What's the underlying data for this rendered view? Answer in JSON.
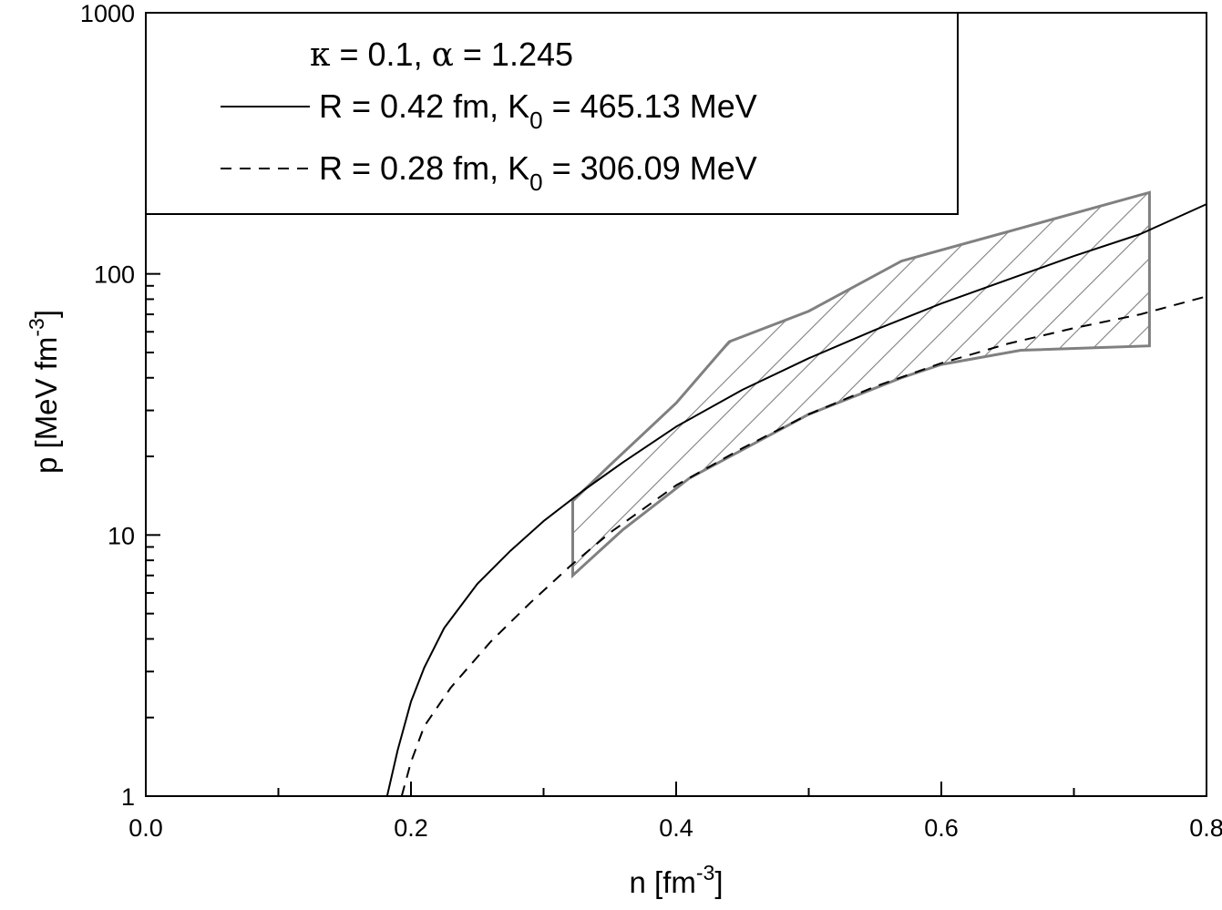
{
  "chart_data": {
    "type": "line",
    "x_axis": {
      "label": "n [fm",
      "label_sup": "-3",
      "label_tail": "]",
      "range": [
        0.0,
        0.8
      ],
      "scale": "linear",
      "major_ticks": [
        0.0,
        0.2,
        0.4,
        0.6,
        0.8
      ],
      "tick_labels": [
        "0.0",
        "0.2",
        "0.4",
        "0.6",
        "0.8"
      ],
      "minor_step": 0.1
    },
    "y_axis": {
      "label": "p [MeV fm",
      "label_sup": "-3",
      "label_tail": "]",
      "range": [
        1,
        1000
      ],
      "scale": "log",
      "major_ticks": [
        1,
        10,
        100,
        1000
      ],
      "tick_labels": [
        "1",
        "10",
        "100",
        "1000"
      ]
    },
    "grid": false,
    "legend": {
      "placement": "top-left",
      "header": {
        "kappa_symbol": "κ",
        "kappa_eq": " = 0.1,  ",
        "alpha_symbol": "α",
        "alpha_eq": " = 1.245"
      },
      "entries": [
        {
          "text_a": "R = 0.42 fm,  K",
          "sub": "0",
          "text_b": " = 465.13 MeV",
          "line_style": "solid"
        },
        {
          "text_a": "R = 0.28 fm,  K",
          "sub": "0",
          "text_b": " = 306.09 MeV",
          "line_style": "dashed"
        }
      ]
    },
    "series": [
      {
        "style": "solid",
        "color": "#000000",
        "points": [
          [
            0.182,
            1.0
          ],
          [
            0.19,
            1.5
          ],
          [
            0.2,
            2.3
          ],
          [
            0.21,
            3.1
          ],
          [
            0.225,
            4.4
          ],
          [
            0.25,
            6.5
          ],
          [
            0.275,
            8.7
          ],
          [
            0.3,
            11.3
          ],
          [
            0.33,
            14.8
          ],
          [
            0.36,
            19.0
          ],
          [
            0.4,
            26.0
          ],
          [
            0.45,
            36.0
          ],
          [
            0.5,
            47.5
          ],
          [
            0.55,
            61.0
          ],
          [
            0.6,
            77.0
          ],
          [
            0.65,
            95.0
          ],
          [
            0.7,
            117.0
          ],
          [
            0.75,
            142.0
          ],
          [
            0.8,
            185.0
          ]
        ]
      },
      {
        "style": "dashed",
        "color": "#000000",
        "points": [
          [
            0.193,
            1.0
          ],
          [
            0.2,
            1.35
          ],
          [
            0.21,
            1.85
          ],
          [
            0.23,
            2.6
          ],
          [
            0.26,
            3.9
          ],
          [
            0.29,
            5.5
          ],
          [
            0.32,
            7.6
          ],
          [
            0.35,
            10.2
          ],
          [
            0.4,
            15.5
          ],
          [
            0.45,
            21.5
          ],
          [
            0.5,
            29.0
          ],
          [
            0.55,
            37.0
          ],
          [
            0.6,
            45.5
          ],
          [
            0.65,
            54.0
          ],
          [
            0.7,
            62.0
          ],
          [
            0.75,
            70.0
          ],
          [
            0.8,
            82.0
          ]
        ]
      }
    ],
    "band": {
      "style": "hatched",
      "color": "#808080",
      "upper": [
        [
          0.322,
          13.5
        ],
        [
          0.35,
          18.5
        ],
        [
          0.4,
          32.0
        ],
        [
          0.44,
          55.0
        ],
        [
          0.5,
          72.0
        ],
        [
          0.57,
          112.0
        ],
        [
          0.65,
          145.0
        ],
        [
          0.757,
          205.0
        ]
      ],
      "lower": [
        [
          0.757,
          53.0
        ],
        [
          0.66,
          51.0
        ],
        [
          0.6,
          45.0
        ],
        [
          0.57,
          40.0
        ],
        [
          0.5,
          29.0
        ],
        [
          0.41,
          16.5
        ],
        [
          0.36,
          10.5
        ],
        [
          0.322,
          7.0
        ]
      ]
    }
  }
}
